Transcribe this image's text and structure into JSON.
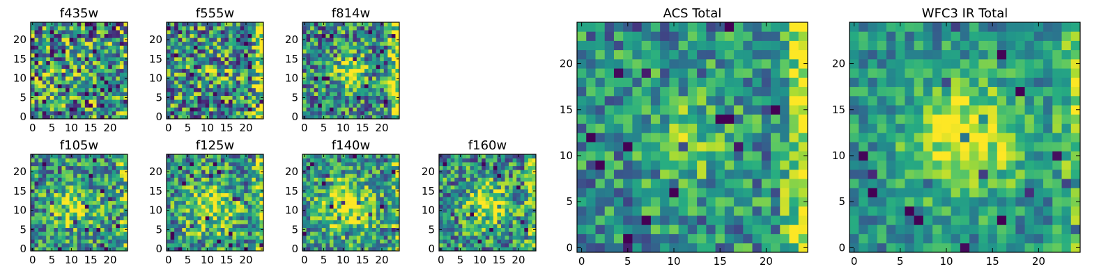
{
  "figure": {
    "colormap": "viridis",
    "background": "#ffffff",
    "axis_color": "#000000",
    "layout": "two rows of small per-filter panels on the left, two large total panels on the right"
  },
  "chart_data": [
    {
      "type": "heatmap",
      "title": "f435w",
      "grid_size": [
        25,
        25
      ],
      "xlim": [
        -0.5,
        24.5
      ],
      "ylim": [
        -0.5,
        24.5
      ],
      "xticks": [
        0,
        5,
        10,
        15,
        20
      ],
      "yticks": [
        0,
        5,
        10,
        15,
        20
      ],
      "blob_center": [
        12,
        12
      ],
      "blob_strength": 0.05,
      "blob_radius": 3,
      "edge_strength": 0.05,
      "noise_level": 1.0,
      "value_range": [
        0,
        1
      ],
      "seed": 11
    },
    {
      "type": "heatmap",
      "title": "f555w",
      "grid_size": [
        25,
        25
      ],
      "xlim": [
        -0.5,
        24.5
      ],
      "ylim": [
        -0.5,
        24.5
      ],
      "xticks": [
        0,
        5,
        10,
        15,
        20
      ],
      "yticks": [
        0,
        5,
        10,
        15,
        20
      ],
      "blob_center": [
        12,
        12
      ],
      "blob_strength": 0.1,
      "blob_radius": 3,
      "edge_strength": 0.55,
      "noise_level": 0.9,
      "value_range": [
        0,
        1
      ],
      "seed": 22
    },
    {
      "type": "heatmap",
      "title": "f814w",
      "grid_size": [
        25,
        25
      ],
      "xlim": [
        -0.5,
        24.5
      ],
      "ylim": [
        -0.5,
        24.5
      ],
      "xticks": [
        0,
        5,
        10,
        15,
        20
      ],
      "yticks": [
        0,
        5,
        10,
        15,
        20
      ],
      "blob_center": [
        12,
        12
      ],
      "blob_strength": 0.5,
      "blob_radius": 2.5,
      "edge_strength": 0.55,
      "noise_level": 0.8,
      "value_range": [
        0,
        1
      ],
      "seed": 33
    },
    {
      "type": "heatmap",
      "title": "f105w",
      "grid_size": [
        25,
        25
      ],
      "xlim": [
        -0.5,
        24.5
      ],
      "ylim": [
        -0.5,
        24.5
      ],
      "xticks": [
        0,
        5,
        10,
        15,
        20
      ],
      "yticks": [
        0,
        5,
        10,
        15,
        20
      ],
      "blob_center": [
        11,
        11
      ],
      "blob_strength": 0.35,
      "blob_radius": 4,
      "edge_strength": 0.3,
      "noise_level": 0.75,
      "value_range": [
        0,
        1
      ],
      "seed": 44
    },
    {
      "type": "heatmap",
      "title": "f125w",
      "grid_size": [
        25,
        25
      ],
      "xlim": [
        -0.5,
        24.5
      ],
      "ylim": [
        -0.5,
        24.5
      ],
      "xticks": [
        0,
        5,
        10,
        15,
        20
      ],
      "yticks": [
        0,
        5,
        10,
        15,
        20
      ],
      "blob_center": [
        11,
        11
      ],
      "blob_strength": 0.4,
      "blob_radius": 5,
      "edge_strength": 0.4,
      "noise_level": 0.75,
      "value_range": [
        0,
        1
      ],
      "seed": 55
    },
    {
      "type": "heatmap",
      "title": "f140w",
      "grid_size": [
        25,
        25
      ],
      "xlim": [
        -0.5,
        24.5
      ],
      "ylim": [
        -0.5,
        24.5
      ],
      "xticks": [
        0,
        5,
        10,
        15,
        20
      ],
      "yticks": [
        0,
        5,
        10,
        15,
        20
      ],
      "blob_center": [
        11,
        11
      ],
      "blob_strength": 0.45,
      "blob_radius": 5,
      "edge_strength": 0.3,
      "noise_level": 0.7,
      "value_range": [
        0,
        1
      ],
      "seed": 66
    },
    {
      "type": "heatmap",
      "title": "f160w",
      "grid_size": [
        25,
        25
      ],
      "xlim": [
        -0.5,
        24.5
      ],
      "ylim": [
        -0.5,
        24.5
      ],
      "xticks": [
        0,
        5,
        10,
        15,
        20
      ],
      "yticks": [
        0,
        5,
        10,
        15,
        20
      ],
      "blob_center": [
        12,
        12
      ],
      "blob_strength": 0.4,
      "blob_radius": 4,
      "edge_strength": 0.3,
      "noise_level": 0.75,
      "value_range": [
        0,
        1
      ],
      "seed": 77
    },
    {
      "type": "heatmap",
      "title": "ACS Total",
      "grid_size": [
        25,
        25
      ],
      "xlim": [
        -0.5,
        24.5
      ],
      "ylim": [
        -0.5,
        24.5
      ],
      "xticks": [
        0,
        5,
        10,
        15,
        20
      ],
      "yticks": [
        0,
        5,
        10,
        15,
        20
      ],
      "blob_center": [
        12,
        12
      ],
      "blob_strength": 0.3,
      "blob_radius": 3,
      "edge_strength": 0.6,
      "noise_level": 0.6,
      "value_range": [
        0,
        1
      ],
      "seed": 88
    },
    {
      "type": "heatmap",
      "title": "WFC3 IR Total",
      "grid_size": [
        25,
        25
      ],
      "xlim": [
        -0.5,
        24.5
      ],
      "ylim": [
        -0.5,
        24.5
      ],
      "xticks": [
        0,
        5,
        10,
        15,
        20
      ],
      "yticks": [
        0,
        5,
        10,
        15,
        20
      ],
      "blob_center": [
        12,
        12
      ],
      "blob_strength": 0.5,
      "blob_radius": 4.5,
      "edge_strength": 0.35,
      "noise_level": 0.45,
      "value_range": [
        0,
        1
      ],
      "seed": 99
    }
  ]
}
